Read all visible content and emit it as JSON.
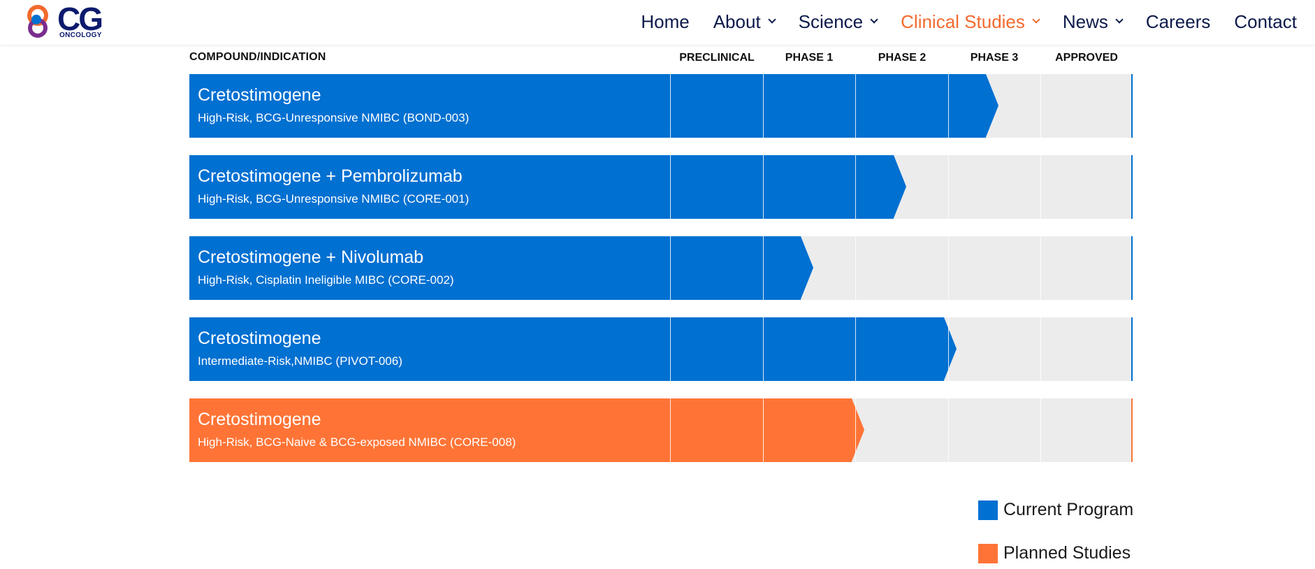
{
  "brand": {
    "logo_text": "CG",
    "logo_subtext": "ONCOLOGY"
  },
  "nav": {
    "items": [
      {
        "label": "Home",
        "dropdown": false,
        "active": false
      },
      {
        "label": "About",
        "dropdown": true,
        "active": false
      },
      {
        "label": "Science",
        "dropdown": true,
        "active": false
      },
      {
        "label": "Clinical Studies",
        "dropdown": true,
        "active": true
      },
      {
        "label": "News",
        "dropdown": true,
        "active": false
      },
      {
        "label": "Careers",
        "dropdown": false,
        "active": false
      },
      {
        "label": "Contact",
        "dropdown": false,
        "active": false
      }
    ]
  },
  "pipeline": {
    "compound_header": "COMPOUND/INDICATION",
    "phases": [
      "PRECLINICAL",
      "PHASE 1",
      "PHASE 2",
      "PHASE 3",
      "APPROVED"
    ],
    "rows": [
      {
        "title": "Cretostimogene",
        "subtitle": "High-Risk, BCG-Unresponsive NMIBC (BOND-003)",
        "progress_phase": 3.55,
        "type": "current"
      },
      {
        "title": "Cretostimogene + Pembrolizumab",
        "subtitle": "High-Risk, BCG-Unresponsive NMIBC (CORE-001)",
        "progress_phase": 2.55,
        "type": "current"
      },
      {
        "title": "Cretostimogene + Nivolumab",
        "subtitle": "High-Risk, Cisplatin Ineligible MIBC (CORE-002)",
        "progress_phase": 1.55,
        "type": "current"
      },
      {
        "title": "Cretostimogene",
        "subtitle": "Intermediate-Risk,NMIBC (PIVOT-006)",
        "progress_phase": 3.1,
        "type": "current"
      },
      {
        "title": "Cretostimogene",
        "subtitle": "High-Risk, BCG-Naive & BCG-exposed NMIBC (CORE-008)",
        "progress_phase": 2.1,
        "type": "planned"
      }
    ]
  },
  "legend": {
    "current_label": "Current Program",
    "planned_label": "Planned Studies"
  },
  "colors": {
    "current": "#0070d1",
    "planned": "#ff7436",
    "track": "#ececec",
    "nav_active": "#f26a2e",
    "nav_text": "#0c1a4a"
  }
}
